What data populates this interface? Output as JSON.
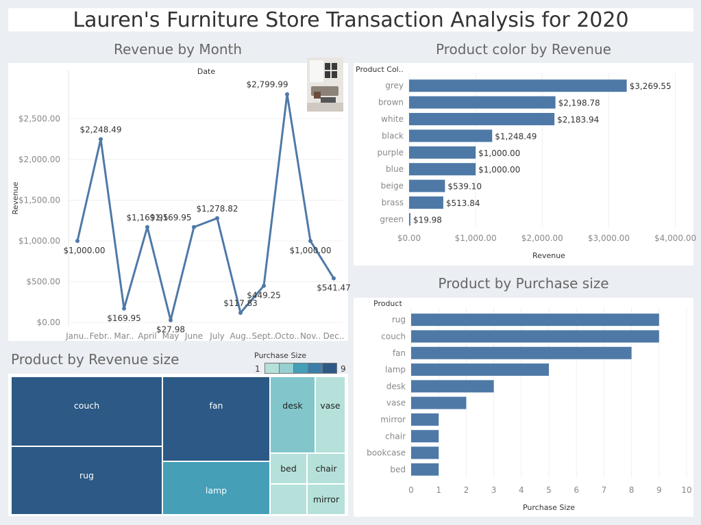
{
  "dashboard": {
    "title": "Lauren's Furniture Store Transaction Analysis for 2020"
  },
  "colors": {
    "bar": "#4e79a7",
    "line": "#4e79a7",
    "tm_dark": "#2c5985",
    "tm_mid": "#449fb7",
    "tm_light": "#82c6cc",
    "tm_pale": "#b5e1da"
  },
  "chart_data": [
    {
      "id": "revenue_by_month",
      "type": "line",
      "title": "Revenue by Month",
      "x_header": "Date",
      "ylabel": "Revenue",
      "categories": [
        "Janu..",
        "Febr..",
        "Mar..",
        "April",
        "May",
        "June",
        "July",
        "Aug..",
        "Sept..",
        "Octo..",
        "Nov..",
        "Dec.."
      ],
      "values": [
        1000.0,
        2248.49,
        169.95,
        1169.95,
        27.98,
        1169.95,
        1278.82,
        117.83,
        449.25,
        2799.99,
        1000.0,
        541.47
      ],
      "labels": [
        "$1,000.00",
        "$2,248.49",
        "$169.95",
        "$1,169.95",
        "$27.98",
        "$1,169.95",
        "$1,278.82",
        "$117.83",
        "$449.25",
        "$2,799.99",
        "$1,000.00",
        "$541.47"
      ],
      "yticks": [
        0,
        500,
        1000,
        1500,
        2000,
        2500
      ],
      "ytick_labels": [
        "$0.00",
        "$500.00",
        "$1,000.00",
        "$1,500.00",
        "$2,000.00",
        "$2,500.00"
      ],
      "ylim": [
        -50,
        3100
      ],
      "grid": true
    },
    {
      "id": "color_by_revenue",
      "type": "bar",
      "orientation": "horizontal",
      "title": "Product color by Revenue",
      "y_header": "Product Col..",
      "xlabel": "Revenue",
      "categories": [
        "grey",
        "brown",
        "white",
        "black",
        "purple",
        "blue",
        "beige",
        "brass",
        "green"
      ],
      "values": [
        3269.55,
        2198.78,
        2183.94,
        1248.49,
        1000.0,
        1000.0,
        539.1,
        513.84,
        19.98
      ],
      "labels": [
        "$3,269.55",
        "$2,198.78",
        "$2,183.94",
        "$1,248.49",
        "$1,000.00",
        "$1,000.00",
        "$539.10",
        "$513.84",
        "$19.98"
      ],
      "xticks": [
        0,
        1000,
        2000,
        3000,
        4000
      ],
      "xtick_labels": [
        "$0.00",
        "$1,000.00",
        "$2,000.00",
        "$3,000.00",
        "$4,000.00"
      ],
      "xlim": [
        0,
        4200
      ]
    },
    {
      "id": "product_by_purchase_size",
      "type": "bar",
      "orientation": "horizontal",
      "title": "Product by Purchase size",
      "y_header": "Product",
      "xlabel": "Purchase Size",
      "categories": [
        "rug",
        "couch",
        "fan",
        "lamp",
        "desk",
        "vase",
        "mirror",
        "chair",
        "bookcase",
        "bed"
      ],
      "values": [
        9,
        9,
        8,
        5,
        3,
        2,
        1,
        1,
        1,
        1
      ],
      "xticks": [
        0,
        1,
        2,
        3,
        4,
        5,
        6,
        7,
        8,
        9,
        10
      ],
      "xlim": [
        0,
        10
      ]
    },
    {
      "id": "product_by_revenue_size",
      "type": "treemap",
      "title": "Product by Revenue size",
      "legend_title": "Purchase Size",
      "legend_min": "1",
      "legend_max": "9",
      "items": [
        {
          "name": "couch",
          "size": 9
        },
        {
          "name": "rug",
          "size": 9
        },
        {
          "name": "fan",
          "size": 8
        },
        {
          "name": "lamp",
          "size": 5
        },
        {
          "name": "desk",
          "size": 3
        },
        {
          "name": "vase",
          "size": 2
        },
        {
          "name": "bed",
          "size": 1
        },
        {
          "name": "chair",
          "size": 1
        },
        {
          "name": "mirror",
          "size": 1
        },
        {
          "name": "",
          "size": 1
        }
      ]
    }
  ]
}
